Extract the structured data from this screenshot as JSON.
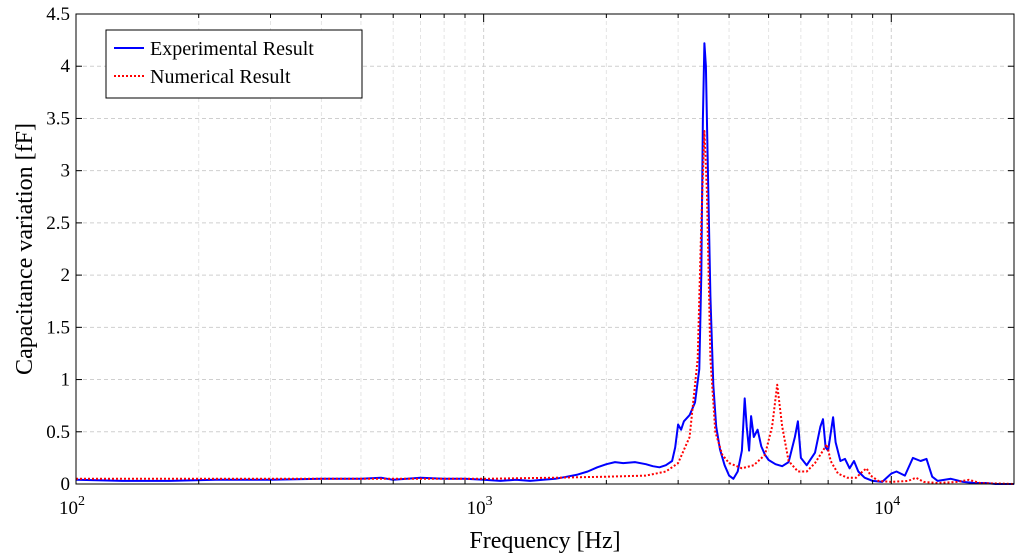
{
  "chart_data": {
    "type": "line",
    "xscale": "log",
    "xlim": [
      100,
      20000
    ],
    "ylim": [
      0,
      4.5
    ],
    "xlabel": "Frequency [Hz]",
    "ylabel": "Capacitance variation [fF]",
    "grid": true,
    "legend_position": "top-left",
    "yticks": [
      {
        "value": 0,
        "label": "0"
      },
      {
        "value": 0.5,
        "label": "0.5"
      },
      {
        "value": 1,
        "label": "1"
      },
      {
        "value": 1.5,
        "label": "1.5"
      },
      {
        "value": 2,
        "label": "2"
      },
      {
        "value": 2.5,
        "label": "2.5"
      },
      {
        "value": 3,
        "label": "3"
      },
      {
        "value": 3.5,
        "label": "3.5"
      },
      {
        "value": 4,
        "label": "4"
      },
      {
        "value": 4.5,
        "label": "4.5"
      }
    ],
    "xticks": [
      {
        "value": 100,
        "base": "10",
        "exp": "2"
      },
      {
        "value": 1000,
        "base": "10",
        "exp": "3"
      },
      {
        "value": 10000,
        "base": "10",
        "exp": "4"
      }
    ],
    "series": [
      {
        "name": "Experimental Result",
        "color": "#0000ff",
        "style": "solid",
        "points": [
          [
            100,
            0.04
          ],
          [
            130,
            0.03
          ],
          [
            170,
            0.03
          ],
          [
            220,
            0.04
          ],
          [
            300,
            0.04
          ],
          [
            400,
            0.05
          ],
          [
            500,
            0.05
          ],
          [
            560,
            0.06
          ],
          [
            600,
            0.04
          ],
          [
            700,
            0.06
          ],
          [
            800,
            0.05
          ],
          [
            900,
            0.05
          ],
          [
            1000,
            0.04
          ],
          [
            1100,
            0.03
          ],
          [
            1200,
            0.04
          ],
          [
            1300,
            0.03
          ],
          [
            1400,
            0.04
          ],
          [
            1500,
            0.05
          ],
          [
            1600,
            0.07
          ],
          [
            1700,
            0.09
          ],
          [
            1800,
            0.12
          ],
          [
            1900,
            0.16
          ],
          [
            2000,
            0.19
          ],
          [
            2100,
            0.21
          ],
          [
            2200,
            0.2
          ],
          [
            2350,
            0.21
          ],
          [
            2500,
            0.19
          ],
          [
            2600,
            0.17
          ],
          [
            2700,
            0.16
          ],
          [
            2800,
            0.18
          ],
          [
            2900,
            0.22
          ],
          [
            2950,
            0.35
          ],
          [
            3000,
            0.57
          ],
          [
            3050,
            0.52
          ],
          [
            3100,
            0.6
          ],
          [
            3200,
            0.66
          ],
          [
            3300,
            0.78
          ],
          [
            3380,
            1.1
          ],
          [
            3420,
            2.0
          ],
          [
            3450,
            3.5
          ],
          [
            3480,
            4.22
          ],
          [
            3510,
            4.0
          ],
          [
            3550,
            3.0
          ],
          [
            3600,
            1.8
          ],
          [
            3660,
            0.95
          ],
          [
            3720,
            0.55
          ],
          [
            3800,
            0.33
          ],
          [
            3900,
            0.18
          ],
          [
            4000,
            0.08
          ],
          [
            4100,
            0.05
          ],
          [
            4200,
            0.12
          ],
          [
            4300,
            0.32
          ],
          [
            4370,
            0.82
          ],
          [
            4420,
            0.55
          ],
          [
            4480,
            0.32
          ],
          [
            4530,
            0.65
          ],
          [
            4600,
            0.45
          ],
          [
            4700,
            0.52
          ],
          [
            4800,
            0.36
          ],
          [
            4900,
            0.28
          ],
          [
            5000,
            0.23
          ],
          [
            5200,
            0.19
          ],
          [
            5400,
            0.17
          ],
          [
            5600,
            0.21
          ],
          [
            5800,
            0.45
          ],
          [
            5900,
            0.6
          ],
          [
            6000,
            0.25
          ],
          [
            6200,
            0.18
          ],
          [
            6500,
            0.3
          ],
          [
            6700,
            0.55
          ],
          [
            6800,
            0.62
          ],
          [
            6900,
            0.35
          ],
          [
            7000,
            0.32
          ],
          [
            7200,
            0.64
          ],
          [
            7300,
            0.4
          ],
          [
            7500,
            0.22
          ],
          [
            7700,
            0.24
          ],
          [
            7900,
            0.15
          ],
          [
            8100,
            0.22
          ],
          [
            8300,
            0.12
          ],
          [
            8600,
            0.06
          ],
          [
            9000,
            0.03
          ],
          [
            9500,
            0.02
          ],
          [
            10000,
            0.1
          ],
          [
            10300,
            0.12
          ],
          [
            10800,
            0.08
          ],
          [
            11300,
            0.25
          ],
          [
            11800,
            0.22
          ],
          [
            12200,
            0.24
          ],
          [
            12600,
            0.07
          ],
          [
            13000,
            0.03
          ],
          [
            14000,
            0.05
          ],
          [
            15000,
            0.02
          ],
          [
            16000,
            0.01
          ],
          [
            17000,
            0.01
          ],
          [
            18000,
            0.0
          ],
          [
            20000,
            0.0
          ]
        ]
      },
      {
        "name": "Numerical Result",
        "color": "#ff0000",
        "style": "dotted",
        "points": [
          [
            100,
            0.05
          ],
          [
            200,
            0.05
          ],
          [
            400,
            0.05
          ],
          [
            700,
            0.05
          ],
          [
            1000,
            0.05
          ],
          [
            1500,
            0.06
          ],
          [
            2000,
            0.07
          ],
          [
            2500,
            0.08
          ],
          [
            2800,
            0.12
          ],
          [
            3000,
            0.2
          ],
          [
            3200,
            0.45
          ],
          [
            3350,
            1.2
          ],
          [
            3420,
            2.5
          ],
          [
            3480,
            3.38
          ],
          [
            3530,
            2.8
          ],
          [
            3600,
            1.2
          ],
          [
            3700,
            0.5
          ],
          [
            3850,
            0.28
          ],
          [
            4000,
            0.2
          ],
          [
            4300,
            0.15
          ],
          [
            4600,
            0.18
          ],
          [
            4900,
            0.28
          ],
          [
            5100,
            0.55
          ],
          [
            5250,
            0.95
          ],
          [
            5400,
            0.55
          ],
          [
            5600,
            0.22
          ],
          [
            5900,
            0.12
          ],
          [
            6200,
            0.12
          ],
          [
            6500,
            0.2
          ],
          [
            6800,
            0.32
          ],
          [
            6950,
            0.38
          ],
          [
            7100,
            0.22
          ],
          [
            7400,
            0.1
          ],
          [
            7800,
            0.06
          ],
          [
            8200,
            0.06
          ],
          [
            8500,
            0.12
          ],
          [
            8700,
            0.15
          ],
          [
            8900,
            0.08
          ],
          [
            9300,
            0.03
          ],
          [
            10000,
            0.02
          ],
          [
            11000,
            0.03
          ],
          [
            11500,
            0.06
          ],
          [
            12000,
            0.02
          ],
          [
            13000,
            0.01
          ],
          [
            14500,
            0.02
          ],
          [
            15500,
            0.04
          ],
          [
            16500,
            0.01
          ],
          [
            20000,
            0.0
          ]
        ]
      }
    ]
  }
}
